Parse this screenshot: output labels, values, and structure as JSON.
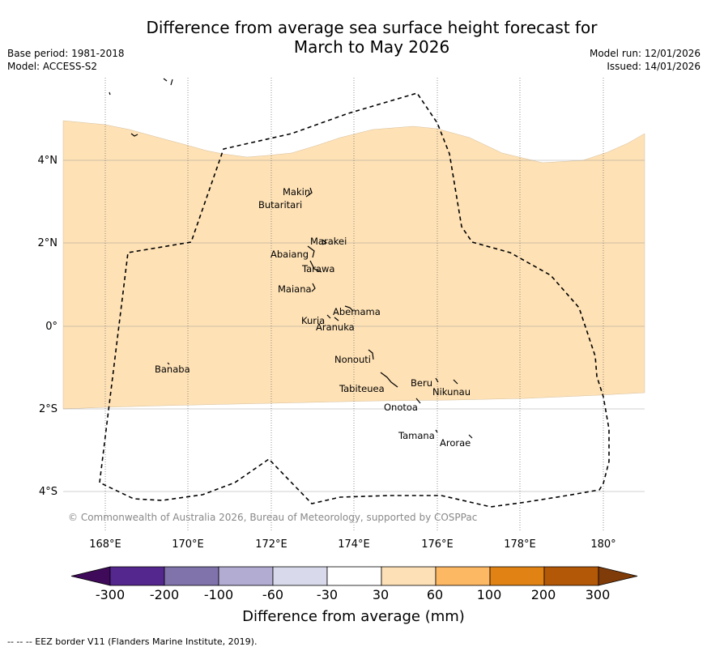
{
  "title_line1": "Difference from average sea surface height forecast for",
  "title_line2": "March to May 2026",
  "meta_left": {
    "base_period": "Base period: 1981-2018",
    "model": "Model: ACCESS-S2"
  },
  "meta_right": {
    "model_run": "Model run: 12/01/2026",
    "issued": "Issued: 14/01/2026"
  },
  "map": {
    "lon_labels": [
      "168°E",
      "170°E",
      "172°E",
      "174°E",
      "176°E",
      "178°E",
      "180°"
    ],
    "lon_values": [
      168,
      170,
      172,
      174,
      176,
      178,
      180
    ],
    "lat_labels": [
      "4°N",
      "2°N",
      "0°",
      "2°S",
      "4°S"
    ],
    "lat_values": [
      4,
      2,
      0,
      -2,
      -4
    ],
    "lon_range": [
      167,
      181
    ],
    "lat_range": [
      -5,
      6
    ],
    "shaded_category": "30 to 60",
    "shaded_color": "#FEE1B5",
    "copyright": "© Commonwealth of Australia 2026, Bureau of Meteorology, supported by COSPPac",
    "islands": [
      {
        "name": "Makin",
        "lon": 172.98,
        "lat": 3.2
      },
      {
        "name": "Butaritari",
        "lon": 172.8,
        "lat": 2.95
      },
      {
        "name": "Marakei",
        "lon": 173.3,
        "lat": 2.0
      },
      {
        "name": "Abaiang",
        "lon": 172.9,
        "lat": 1.8
      },
      {
        "name": "Tarawa",
        "lon": 173.0,
        "lat": 1.4
      },
      {
        "name": "Maiana",
        "lon": 173.0,
        "lat": 0.9
      },
      {
        "name": "Abemama",
        "lon": 173.85,
        "lat": 0.4
      },
      {
        "name": "Kuria",
        "lon": 173.4,
        "lat": 0.2
      },
      {
        "name": "Aranuka",
        "lon": 173.6,
        "lat": 0.15
      },
      {
        "name": "Nonouti",
        "lon": 174.4,
        "lat": -0.65
      },
      {
        "name": "Banaba",
        "lon": 169.53,
        "lat": -0.87
      },
      {
        "name": "Tabiteuea",
        "lon": 174.8,
        "lat": -1.3
      },
      {
        "name": "Beru",
        "lon": 176.0,
        "lat": -1.33
      },
      {
        "name": "Nikunau",
        "lon": 176.45,
        "lat": -1.35
      },
      {
        "name": "Onotoa",
        "lon": 175.55,
        "lat": -1.8
      },
      {
        "name": "Tamana",
        "lon": 175.98,
        "lat": -2.5
      },
      {
        "name": "Arorae",
        "lon": 176.82,
        "lat": -2.65
      }
    ]
  },
  "colorbar": {
    "ticks": [
      "-300",
      "-200",
      "-100",
      "-60",
      "-30",
      "30",
      "60",
      "100",
      "200",
      "300"
    ],
    "colors": [
      "#3F0A5A",
      "#54278F",
      "#8073AC",
      "#B2ABD2",
      "#D8DAEB",
      "#FFFFFF",
      "#FEE0B6",
      "#FDB863",
      "#E08214",
      "#B35806",
      "#7F3B08"
    ],
    "title": "Difference from average (mm)"
  },
  "footer": "--  --  -- EEZ border V11 (Flanders Marine Institute, 2019)."
}
